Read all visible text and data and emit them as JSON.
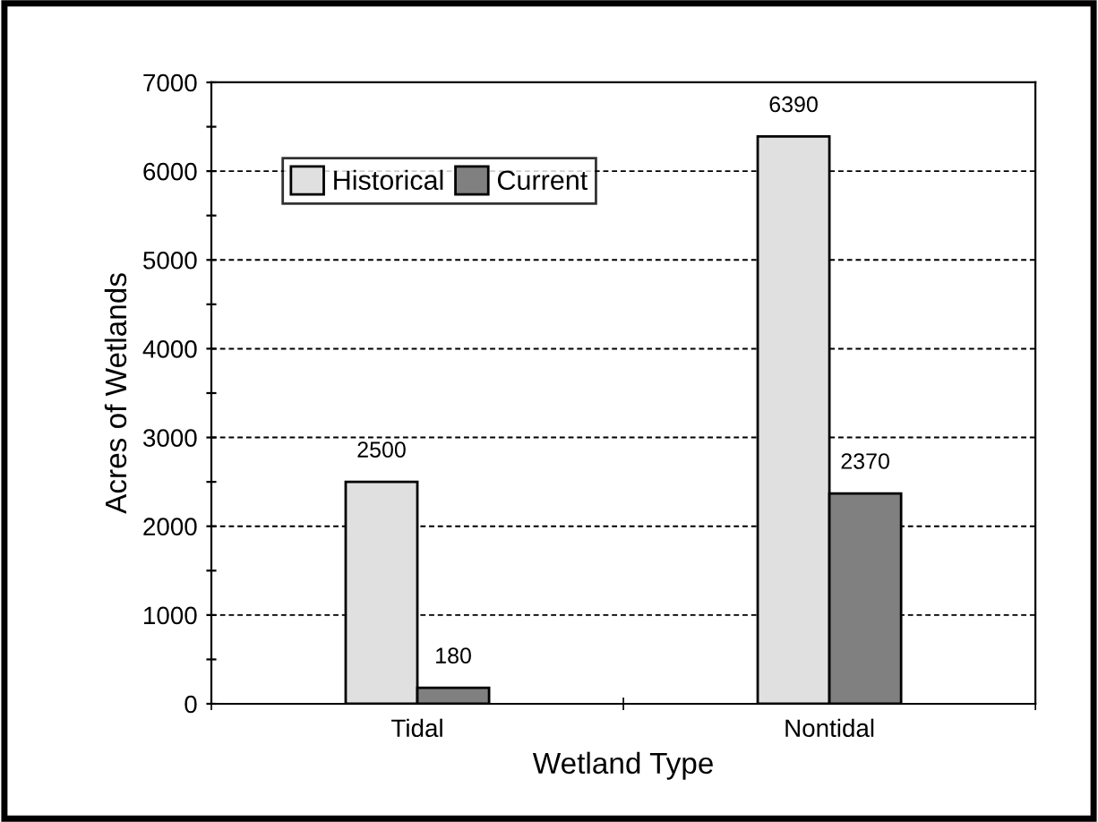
{
  "chart_data": {
    "type": "bar",
    "xlabel": "Wetland Type",
    "ylabel": "Acres of Wetlands",
    "categories": [
      "Tidal",
      "Nontidal"
    ],
    "series": [
      {
        "name": "Historical",
        "color": "#e0e0e0",
        "values": [
          2500,
          6390
        ]
      },
      {
        "name": "Current",
        "color": "#808080",
        "values": [
          180,
          2370
        ]
      }
    ],
    "ylim": [
      0,
      7000
    ],
    "yticks": [
      0,
      {
        "value": 500,
        "label": null
      },
      1000,
      {
        "value": 1500,
        "label": null
      },
      2000,
      {
        "value": 2500,
        "label": null
      },
      3000,
      {
        "value": 3500,
        "label": null
      },
      4000,
      {
        "value": 4500,
        "label": null
      },
      5000,
      {
        "value": 5500,
        "label": null
      },
      6000,
      {
        "value": 6500,
        "label": null
      },
      7000
    ],
    "grid": "y",
    "legend": "top left",
    "data_labels": true
  }
}
